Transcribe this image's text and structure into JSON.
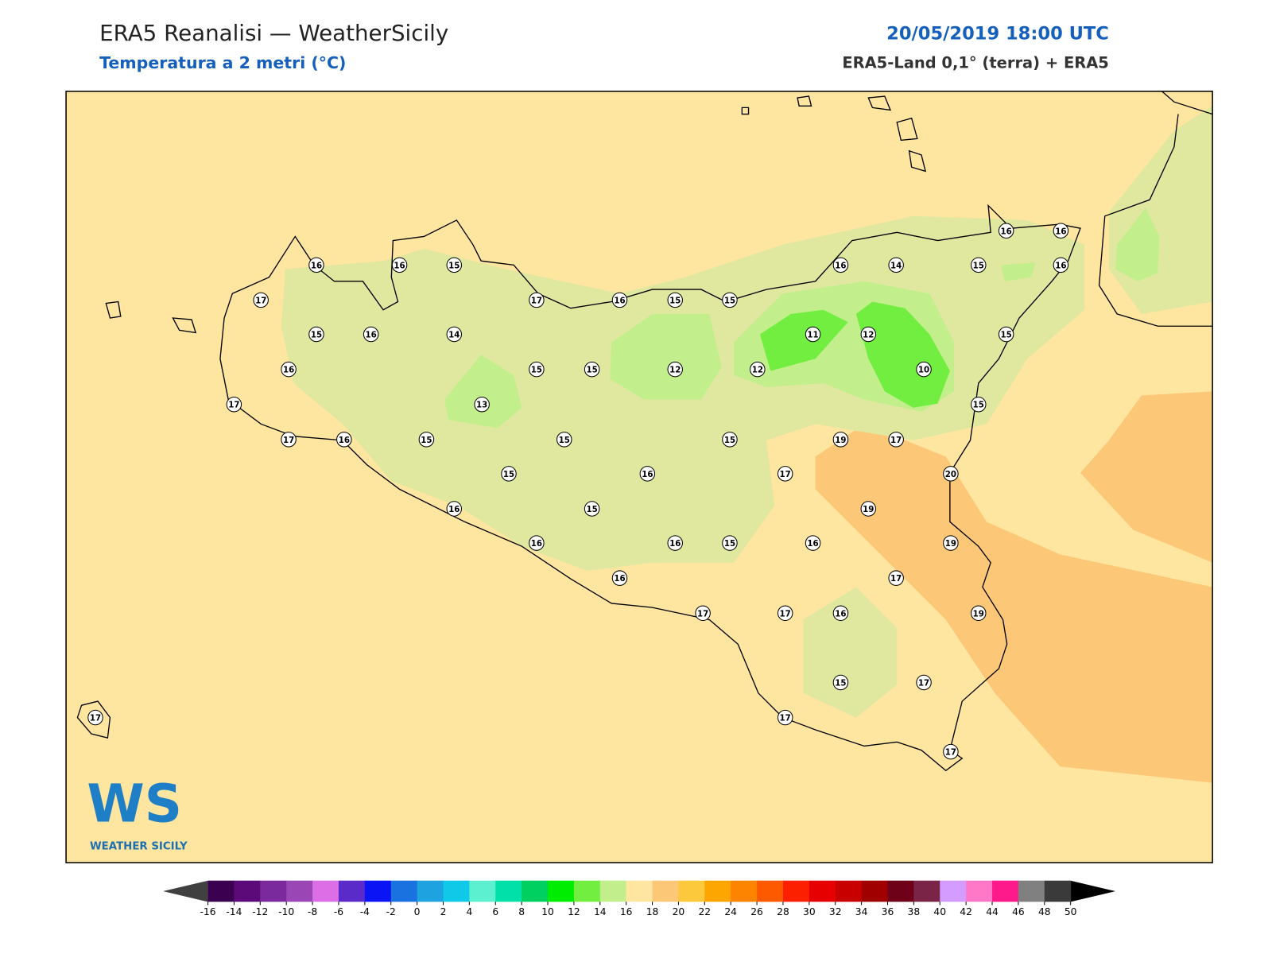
{
  "header": {
    "title": "ERA5 Reanalisi — WeatherSicily",
    "subtitle": "Temperatura a 2 metri (°C)",
    "date": "20/05/2019 18:00 UTC",
    "source": "ERA5-Land 0,1° (terra) + ERA5"
  },
  "stations": [
    16,
    16,
    15,
    17,
    17,
    16,
    15,
    15,
    15,
    16,
    14,
    16,
    15,
    15,
    12,
    17,
    13,
    17,
    16,
    15,
    15,
    15,
    15,
    16,
    16,
    15,
    16,
    16,
    15,
    16,
    17,
    17,
    16,
    17,
    16,
    15,
    17,
    16,
    16,
    16,
    14,
    15,
    16,
    11,
    12,
    15,
    12,
    10,
    15,
    19,
    17,
    20,
    19,
    19,
    17,
    19,
    17,
    17,
    17
  ],
  "colorbar": {
    "ticks": [
      -16,
      -14,
      -12,
      -10,
      -8,
      -6,
      -4,
      -2,
      0,
      2,
      4,
      6,
      8,
      10,
      12,
      14,
      16,
      18,
      20,
      22,
      24,
      26,
      28,
      30,
      32,
      34,
      36,
      38,
      40,
      42,
      44,
      46,
      48,
      50
    ],
    "colors": [
      "#3b0050",
      "#5c0a7a",
      "#7b2a9e",
      "#9a47b5",
      "#dc6ee6",
      "#5b2bc9",
      "#0a14f5",
      "#1a72e0",
      "#1fa2e0",
      "#10c8e8",
      "#5cf0d0",
      "#00e0a8",
      "#00d060",
      "#00ec00",
      "#72ee40",
      "#c2ee8c",
      "#fee5a0",
      "#fcc878",
      "#fdc93c",
      "#fda500",
      "#fd8400",
      "#fd5a00",
      "#fd2000",
      "#e60000",
      "#c80000",
      "#a00000",
      "#6e0018",
      "#7a2448",
      "#d49cff",
      "#ff78c8",
      "#ff1a8c",
      "#808080",
      "#3a3a3a"
    ],
    "under": "#404040",
    "over": "#000000"
  },
  "logo": {
    "text": "WS",
    "caption": "WEATHER SICILY"
  }
}
